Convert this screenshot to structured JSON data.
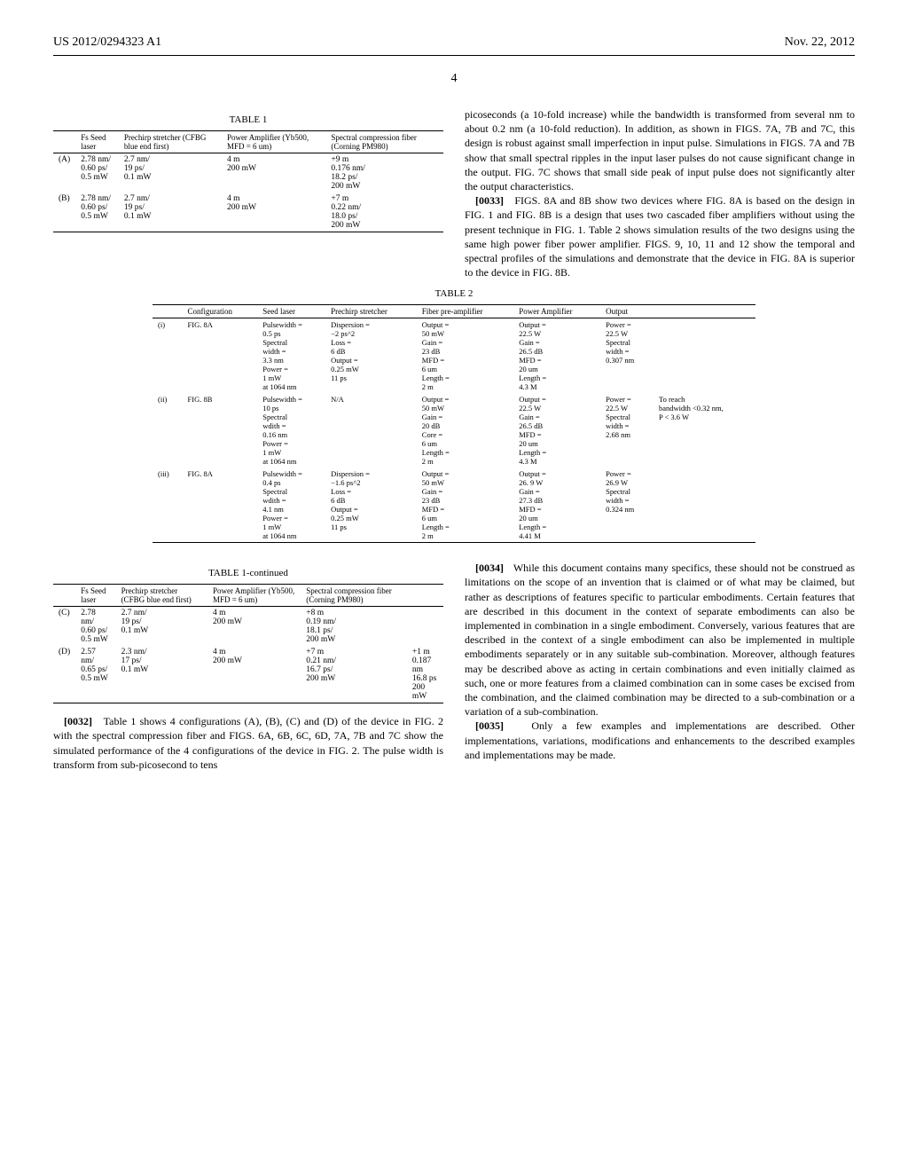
{
  "header": {
    "pub_no": "US 2012/0294323 A1",
    "date": "Nov. 22, 2012",
    "page": "4"
  },
  "table1": {
    "title": "TABLE 1",
    "title_cont": "TABLE 1-continued",
    "headers": [
      "",
      "Fs Seed laser",
      "Prechirp stretcher (CFBG blue end first)",
      "Power Amplifier (Yb500, MFD = 6 um)",
      "Spectral compression fiber (Corning PM980)",
      ""
    ],
    "rows_ab": [
      {
        "id": "(A)",
        "c1": "2.78 nm/\n0.60 ps/\n0.5 mW",
        "c2": "2.7 nm/\n19 ps/\n0.1 mW",
        "c3": "4 m\n200 mW",
        "c4": "+9 m\n0.176 nm/\n18.2 ps/\n200 mW",
        "c5": ""
      },
      {
        "id": "(B)",
        "c1": "2.78 nm/\n0.60 ps/\n0.5 mW",
        "c2": "2.7 nm/\n19 ps/\n0.1 mW",
        "c3": "4 m\n200 mW",
        "c4": "+7 m\n0.22 nm/\n18.0 ps/\n200 mW",
        "c5": ""
      }
    ],
    "rows_cd": [
      {
        "id": "(C)",
        "c1": "2.78 nm/\n0.60 ps/\n0.5 mW",
        "c2": "2.7 nm/\n19 ps/\n0.1 mW",
        "c3": "4 m\n200 mW",
        "c4": "+8 m\n0.19 nm/\n18.1 ps/\n200 mW",
        "c5": ""
      },
      {
        "id": "(D)",
        "c1": "2.57 nm/\n0.65 ps/\n0.5 mW",
        "c2": "2.3 nm/\n17 ps/\n0.1 mW",
        "c3": "4 m\n200 mW",
        "c4": "+7 m\n0.21 nm/\n16.7 ps/\n200 mW",
        "c5": "+1 m\n0.187 nm\n16.8 ps\n200 mW"
      }
    ]
  },
  "table2": {
    "title": "TABLE 2",
    "headers": [
      "",
      "Configuration",
      "Seed laser",
      "Prechirp stretcher",
      "Fiber pre-amplifier",
      "Power Amplifier",
      "Output",
      ""
    ],
    "rows": [
      {
        "id": "(i)",
        "config": "FIG. 8A",
        "seed": "Pulsewidth =\n0.5 ps\nSpectral\nwidth =\n3.3 nm\nPower =\n1 mW\nat 1064 nm",
        "stretch": "Dispersion =\n−2 ps^2\nLoss =\n6 dB\nOutput =\n0.25 mW\n11 ps",
        "preamp": "Output =\n50 mW\nGain =\n23 dB\nMFD =\n6 um\nLength =\n2 m",
        "amp": "Output =\n22.5 W\nGain =\n26.5 dB\nMFD =\n20 um\nLength =\n4.3 M",
        "out": "Power =\n22.5 W\nSpectral\nwidth =\n0.307 nm",
        "note": ""
      },
      {
        "id": "(ii)",
        "config": "FIG. 8B",
        "seed": "Pulsewidth =\n10 ps\nSpectral\nwdith =\n0.16 nm\nPower =\n1 mW\nat 1064 nm",
        "stretch": "N/A",
        "preamp": "Output =\n50 mW\nGain =\n20 dB\nCore =\n6 um\nLength =\n2 m",
        "amp": "Output =\n22.5 W\nGain =\n26.5 dB\nMFD =\n20 um\nLength =\n4.3 M",
        "out": "Power =\n22.5 W\nSpectral\nwidth =\n2.68 nm",
        "note": "To reach\nbandwidth <0.32 nm,\nP < 3.6 W"
      },
      {
        "id": "(iii)",
        "config": "FIG. 8A",
        "seed": "Pulsewidth =\n0.4 ps\nSpectral\nwdith =\n4.1 nm\nPower =\n1 mW\nat 1064 nm",
        "stretch": "Dispersion =\n−1.6 ps^2\nLoss =\n6 dB\nOutput =\n0.25 mW\n11 ps",
        "preamp": "Output =\n50 mW\nGain =\n23 dB\nMFD =\n6 um\nLength =\n2 m",
        "amp": "Output =\n26. 9 W\nGain =\n27.3 dB\nMFD =\n20 um\nLength =\n4.41 M",
        "out": "Power =\n26.9 W\nSpectral\nwidth =\n0.324 nm",
        "note": ""
      }
    ]
  },
  "paras": {
    "p32_label": "[0032]",
    "p32": "Table 1 shows 4 configurations (A), (B), (C) and (D) of the device in FIG. 2 with the spectral compression fiber and FIGS. 6A, 6B, 6C, 6D, 7A, 7B and 7C show the simulated performance of the 4 configurations of the device in FIG. 2. The pulse width is transform from sub-picosecond to tens",
    "pr1": "picoseconds (a 10-fold increase) while the bandwidth is transformed from several nm to about 0.2 nm (a 10-fold reduction). In addition, as shown in FIGS. 7A, 7B and 7C, this design is robust against small imperfection in input pulse. Simulations in FIGS. 7A and 7B show that small spectral ripples in the input laser pulses do not cause significant change in the output. FIG. 7C shows that small side peak of input pulse does not significantly alter the output characteristics.",
    "p33_label": "[0033]",
    "p33": "FIGS. 8A and 8B show two devices where FIG. 8A is based on the design in FIG. 1 and FIG. 8B is a design that uses two cascaded fiber amplifiers without using the present technique in FIG. 1. Table 2 shows simulation results of the two designs using the same high power fiber power amplifier. FIGS. 9, 10, 11 and 12 show the temporal and spectral profiles of the simulations and demonstrate that the device in FIG. 8A is superior to the device in FIG. 8B.",
    "p34_label": "[0034]",
    "p34": "While this document contains many specifics, these should not be construed as limitations on the scope of an invention that is claimed or of what may be claimed, but rather as descriptions of features specific to particular embodiments. Certain features that are described in this document in the context of separate embodiments can also be implemented in combination in a single embodiment. Conversely, various features that are described in the context of a single embodiment can also be implemented in multiple embodiments separately or in any suitable sub-combination. Moreover, although features may be described above as acting in certain combinations and even initially claimed as such, one or more features from a claimed combination can in some cases be excised from the combination, and the claimed combination may be directed to a sub-combination or a variation of a sub-combination.",
    "p35_label": "[0035]",
    "p35": "Only a few examples and implementations are described. Other implementations, variations, modifications and enhancements to the described examples and implementations may be made."
  }
}
